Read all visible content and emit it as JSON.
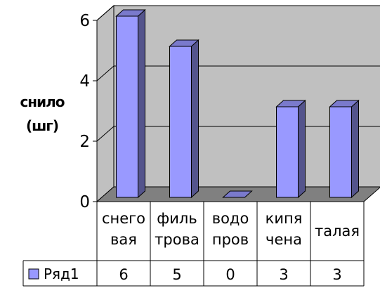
{
  "chart_data": {
    "type": "bar",
    "ylabel": [
      "снило",
      "(шг)"
    ],
    "categories": [
      [
        "снего",
        "вая"
      ],
      [
        "филь",
        "трова"
      ],
      [
        "водо",
        "пров"
      ],
      [
        "кипя",
        "чена"
      ],
      [
        "талая"
      ]
    ],
    "series": [
      {
        "name": "Ряд1",
        "values": [
          6,
          5,
          0,
          3,
          3
        ],
        "color": "#9999ff"
      }
    ],
    "ylim": [
      0,
      6
    ],
    "yticks": [
      0,
      2,
      4,
      6
    ],
    "grid": true,
    "legend_placement": "data-table-left",
    "wall_color": "#c0c0c0",
    "floor_color": "#808080"
  }
}
